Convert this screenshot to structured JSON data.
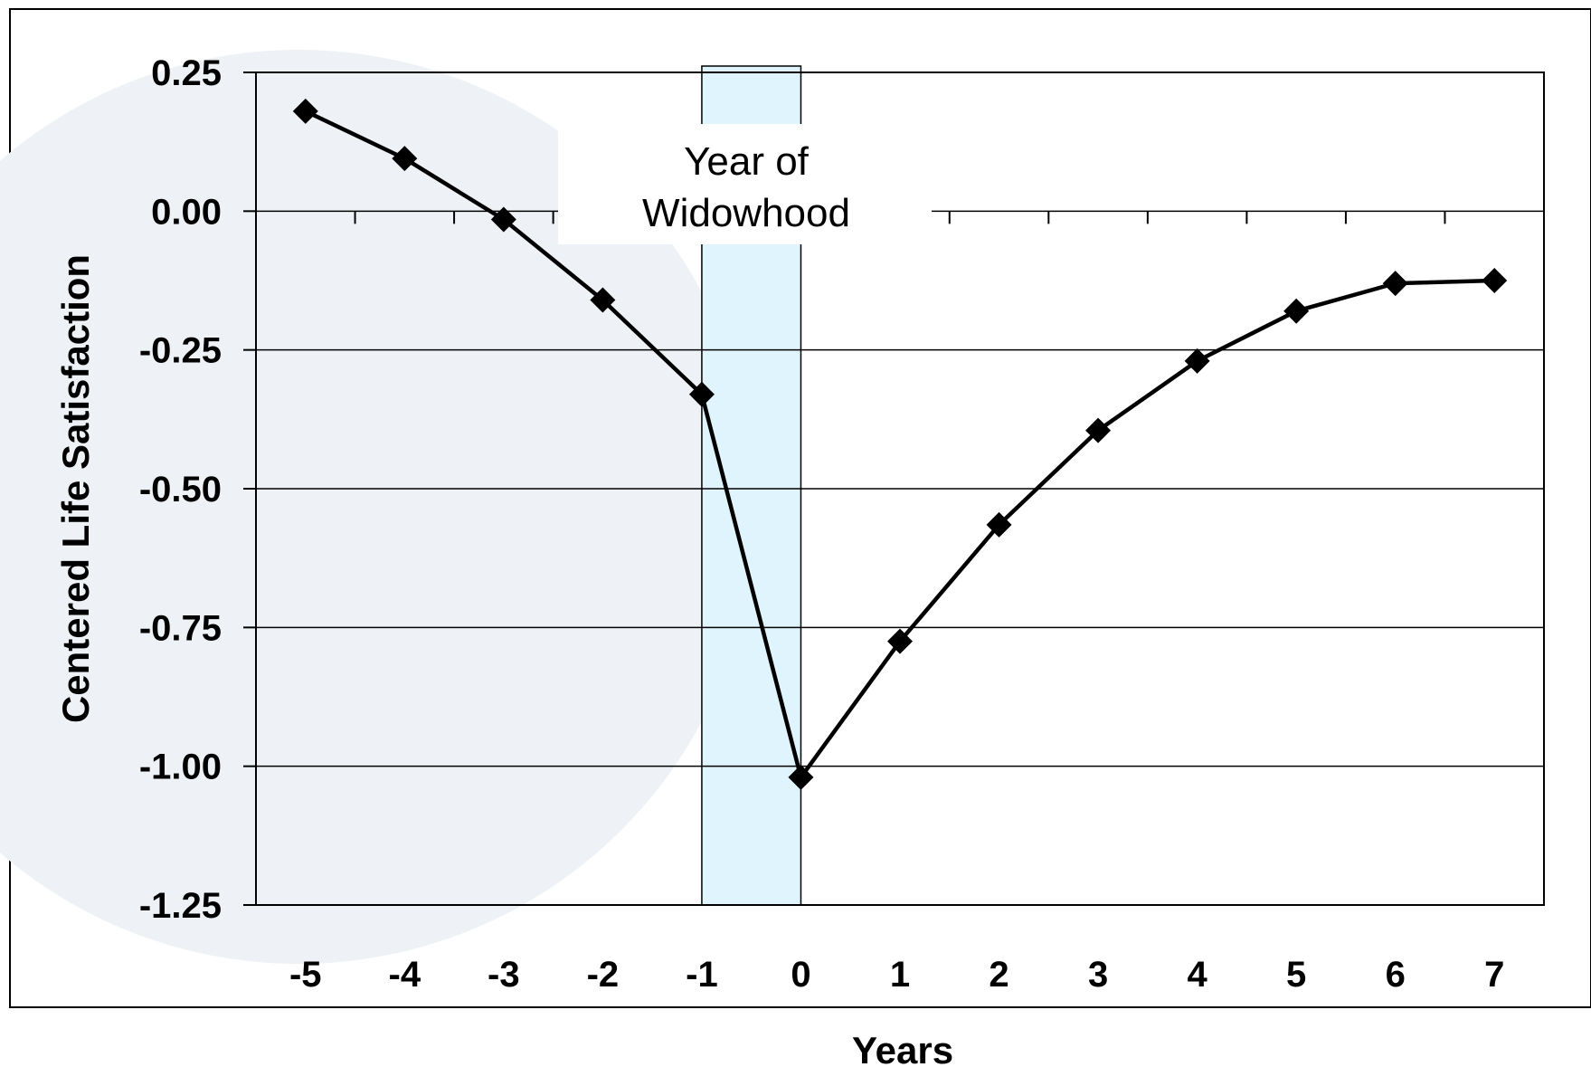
{
  "chart_data": {
    "type": "line",
    "title": "",
    "xlabel": "Years",
    "ylabel": "Centered Life Satisfaction",
    "x": [
      -5,
      -4,
      -3,
      -2,
      -1,
      0,
      1,
      2,
      3,
      4,
      5,
      6,
      7
    ],
    "x_tick_labels": [
      "-5",
      "-4",
      "-3",
      "-2",
      "-1",
      "0",
      "1",
      "2",
      "3",
      "4",
      "5",
      "6",
      "7"
    ],
    "y_ticks": [
      0.25,
      0.0,
      -0.25,
      -0.5,
      -0.75,
      -1.0,
      -1.25
    ],
    "y_tick_labels": [
      "0.25",
      "0.00",
      "-0.25",
      "-0.50",
      "-0.75",
      "-1.00",
      "-1.25"
    ],
    "ylim": [
      -1.25,
      0.25
    ],
    "series": [
      {
        "values": [
          0.18,
          0.095,
          -0.015,
          -0.16,
          -0.33,
          -1.02,
          -0.775,
          -0.565,
          -0.395,
          -0.27,
          -0.18,
          -0.13,
          -0.125
        ]
      }
    ],
    "highlight_band": {
      "from": -1,
      "to": 0,
      "label_line1": "Year of",
      "label_line2": "Widowhood",
      "color": "#dff4fc"
    },
    "grid": true,
    "line_color": "#000000",
    "background_circle_color": "#eef2f6"
  }
}
